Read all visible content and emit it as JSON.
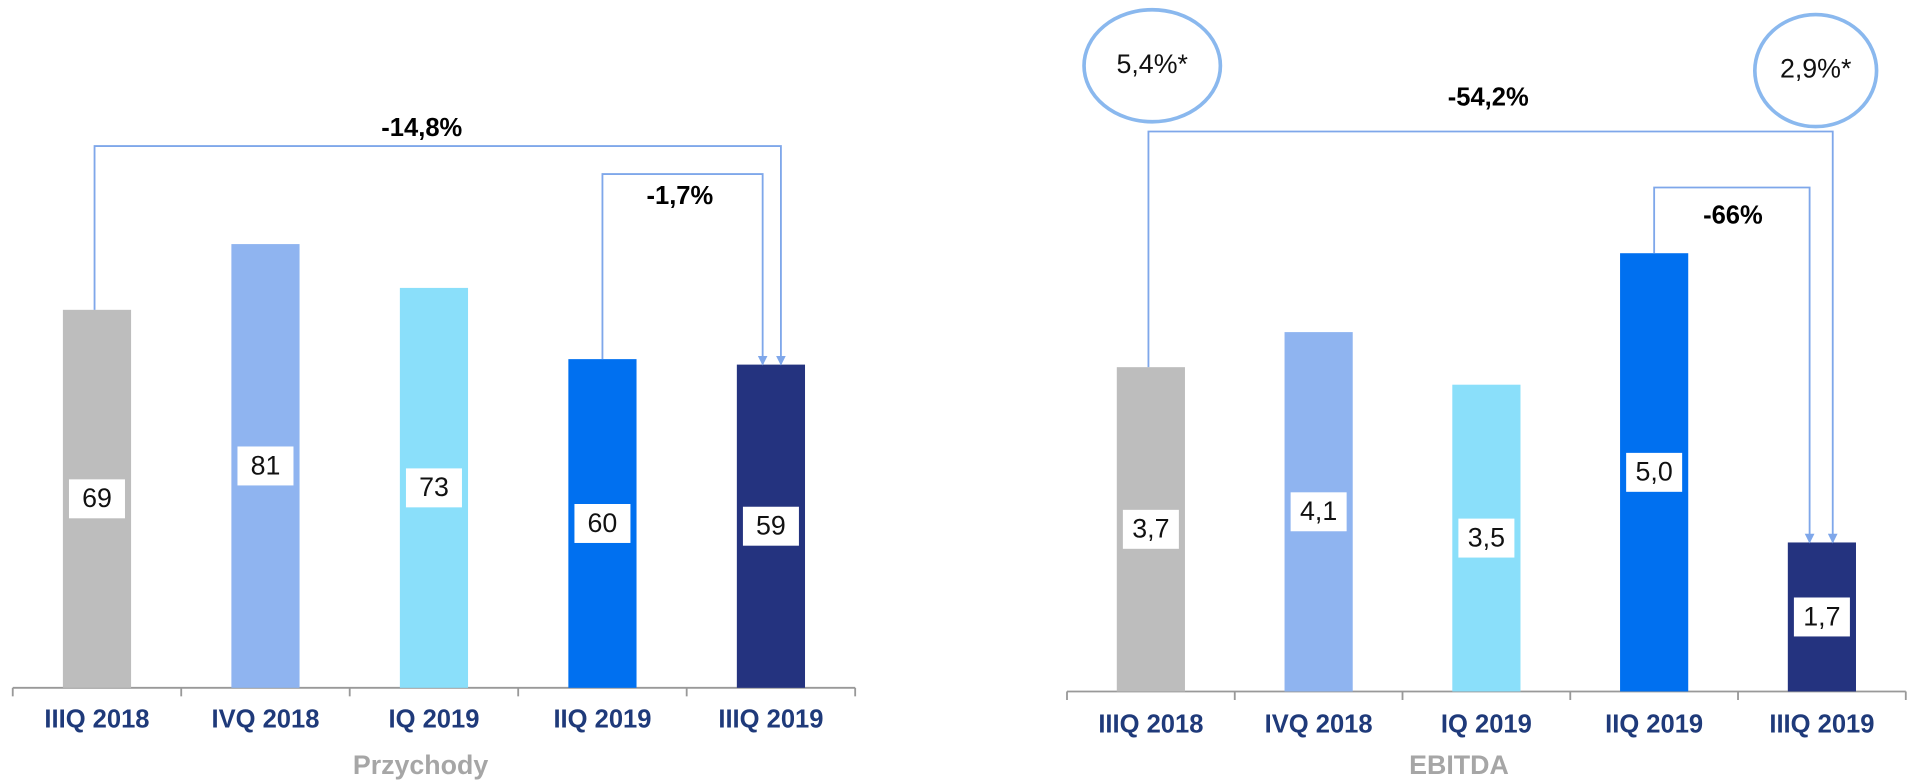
{
  "chart_data": [
    {
      "type": "bar",
      "xlabel": "Przychody",
      "categories": [
        "IIIQ 2018",
        "IVQ 2018",
        "IQ 2019",
        "IIQ 2019",
        "IIIQ 2019"
      ],
      "values": [
        69,
        81,
        73,
        60,
        59
      ],
      "colors": [
        "#bdbdbd",
        "#8fb4f0",
        "#8adffa",
        "#0070f0",
        "#24337f"
      ],
      "ylim": [
        0,
        100
      ],
      "annotations": [
        "-14,8%",
        "-1,7%"
      ]
    },
    {
      "type": "bar",
      "xlabel": "EBITDA",
      "categories": [
        "IIIQ 2018",
        "IVQ 2018",
        "IQ 2019",
        "IIQ 2019",
        "IIIQ 2019"
      ],
      "values": [
        3.7,
        4.1,
        3.5,
        5.0,
        1.7
      ],
      "value_labels": [
        "3,7",
        "4,1",
        "3,5",
        "5,0",
        "1,7"
      ],
      "colors": [
        "#bdbdbd",
        "#8fb4f0",
        "#8adffa",
        "#0070f0",
        "#24337f"
      ],
      "ylim": [
        0,
        6
      ],
      "annotations": [
        "-54,2%",
        "-66%",
        "5,4%*",
        "2,9%*"
      ]
    }
  ]
}
